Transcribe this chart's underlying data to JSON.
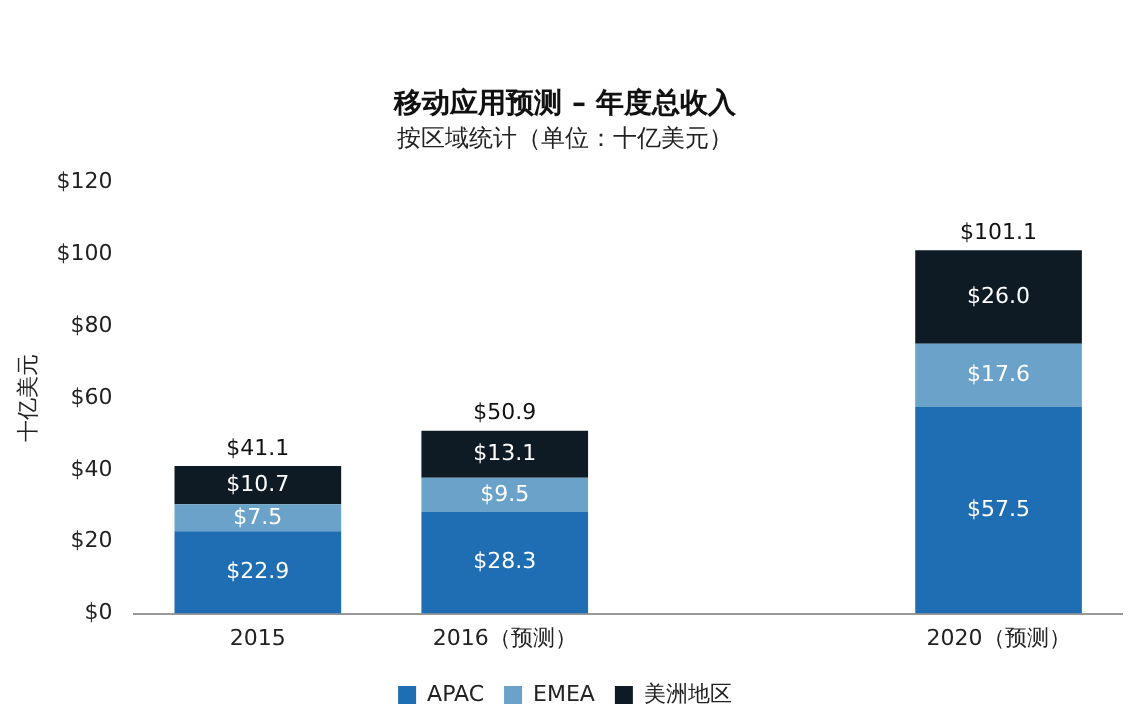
{
  "chart_data": {
    "type": "bar",
    "title": "移动应用预测 – 年度总收入",
    "subtitle": "按区域统计（单位：十亿美元）",
    "ylabel": "十亿美元",
    "categories": [
      "2015",
      "2016（预测）",
      null,
      "2020（预测）"
    ],
    "series": [
      {
        "name": "APAC",
        "color": "#1f6db3",
        "values": [
          22.9,
          28.3,
          null,
          57.5
        ],
        "value_labels": [
          "$22.9",
          "$28.3",
          null,
          "$57.5"
        ]
      },
      {
        "name": "EMEA",
        "color": "#6aa2c9",
        "values": [
          7.5,
          9.5,
          null,
          17.6
        ],
        "value_labels": [
          "$7.5",
          "$9.5",
          null,
          "$17.6"
        ]
      },
      {
        "name": "美洲地区",
        "color": "#0e1b25",
        "values": [
          10.7,
          13.1,
          null,
          26.0
        ],
        "value_labels": [
          "$10.7",
          "$13.1",
          null,
          "$26.0"
        ]
      }
    ],
    "stacked": true,
    "totals": [
      "$41.1",
      "$50.9",
      null,
      "$101.1"
    ],
    "ylim": [
      0,
      120
    ],
    "yticks": [
      {
        "value": 0,
        "label": "$0"
      },
      {
        "value": 20,
        "label": "$20"
      },
      {
        "value": 40,
        "label": "$40"
      },
      {
        "value": 60,
        "label": "$60"
      },
      {
        "value": 80,
        "label": "$80"
      },
      {
        "value": 100,
        "label": "$100"
      },
      {
        "value": 120,
        "label": "$120"
      }
    ],
    "grid": false,
    "legend": "bottom"
  }
}
